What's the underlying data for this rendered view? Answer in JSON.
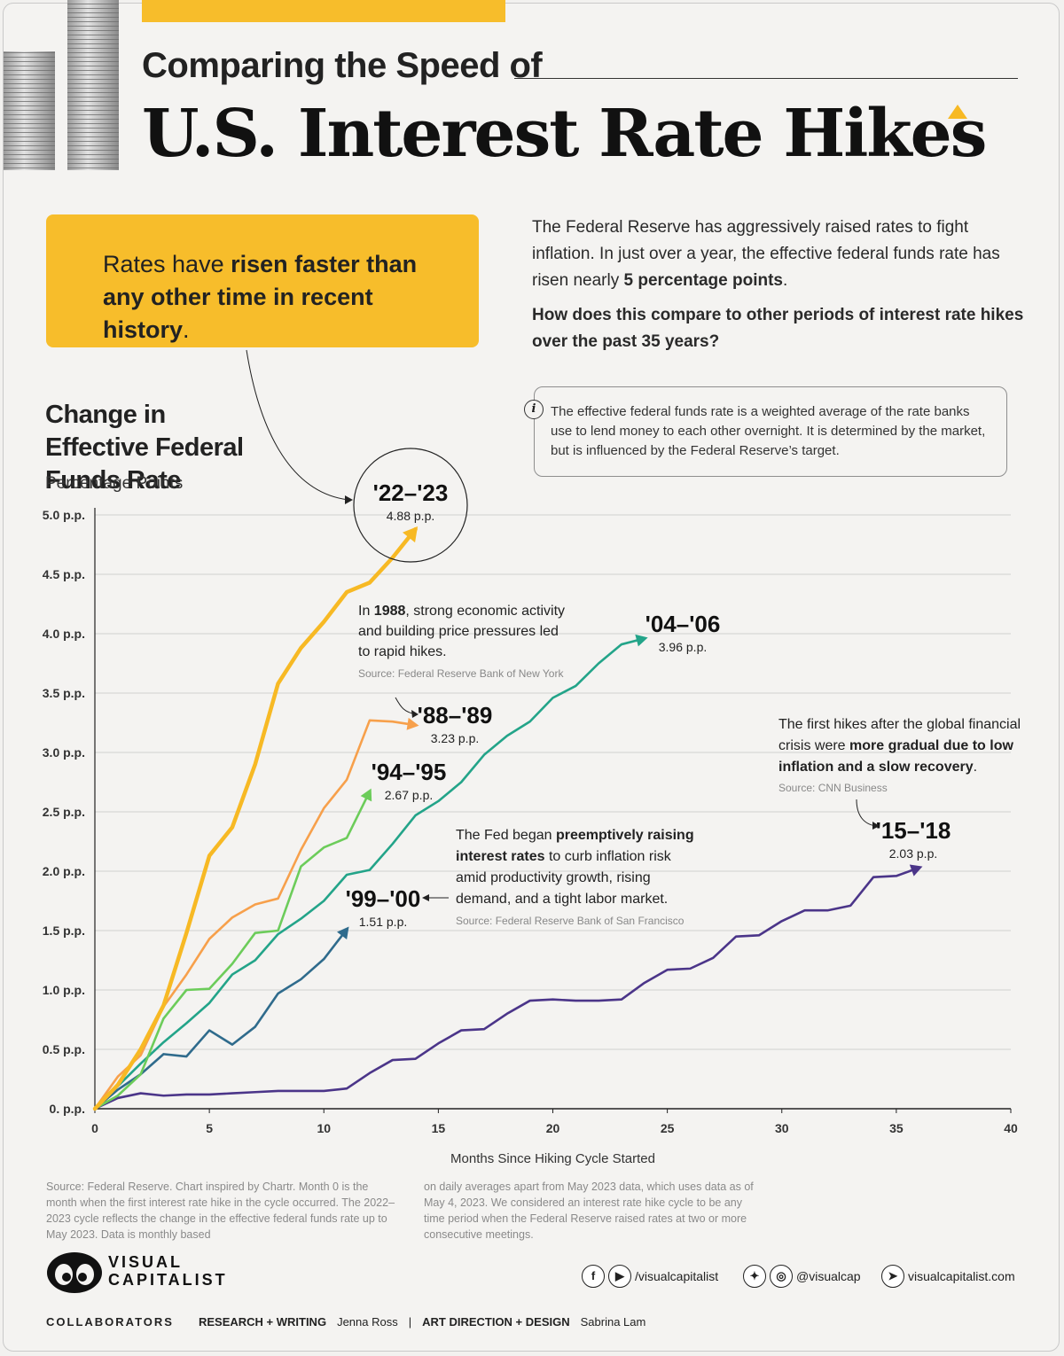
{
  "header": {
    "subtitle": "Comparing the Speed of",
    "title": "U.S. Interest Rate Hikes"
  },
  "callout": {
    "pre": "Rates have ",
    "bold": "risen faster than any other time in recent history",
    "post": "."
  },
  "intro": {
    "p1": "The Federal Reserve has aggressively raised rates to fight inflation. In just over a year, the effective federal funds rate has risen nearly",
    "p1_bold": "5 percentage points",
    "p1_end": ".",
    "p2": "How does this compare to other periods of interest rate hikes over the past 35 years?"
  },
  "info": {
    "icon": "i",
    "text": "The effective federal funds rate is a weighted average of the rate banks use to lend money to each other overnight. It is determined by the market, but is influenced by the Federal Reserve’s target."
  },
  "chart_data": {
    "type": "line",
    "title": "Change in Effective Federal Funds Rate",
    "ylabel": "Percentage Points",
    "xlabel": "Months Since Hiking Cycle Started",
    "xlim": [
      0,
      40
    ],
    "ylim": [
      0,
      5
    ],
    "x_ticks": [
      0,
      5,
      10,
      15,
      20,
      25,
      30,
      35,
      40
    ],
    "y_ticks": [
      {
        "value": 0,
        "label": "0. p.p."
      },
      {
        "value": 0.5,
        "label": "0.5 p.p."
      },
      {
        "value": 1,
        "label": "1.0 p.p."
      },
      {
        "value": 1.5,
        "label": "1.5 p.p."
      },
      {
        "value": 2,
        "label": "2.0 p.p."
      },
      {
        "value": 2.5,
        "label": "2.5 p.p."
      },
      {
        "value": 3,
        "label": "3.0 p.p."
      },
      {
        "value": 3.5,
        "label": "3.5 p.p."
      },
      {
        "value": 4,
        "label": "4.0 p.p."
      },
      {
        "value": 4.5,
        "label": "4.5 p.p."
      },
      {
        "value": 5,
        "label": "5.0 p.p."
      }
    ],
    "grid": "horizontal",
    "series": [
      {
        "name": "'15–'18",
        "final_label": "2.03 p.p.",
        "color": "#4b3589",
        "values": [
          0,
          0.09,
          0.13,
          0.11,
          0.12,
          0.12,
          0.13,
          0.14,
          0.15,
          0.15,
          0.15,
          0.17,
          0.3,
          0.41,
          0.42,
          0.55,
          0.66,
          0.67,
          0.8,
          0.91,
          0.92,
          0.91,
          0.91,
          0.92,
          1.06,
          1.17,
          1.18,
          1.27,
          1.45,
          1.46,
          1.58,
          1.67,
          1.67,
          1.71,
          1.95,
          1.96,
          2.03
        ]
      },
      {
        "name": "'99–'00",
        "final_label": "1.51 p.p.",
        "color": "#2f6b8c",
        "values": [
          0,
          0.16,
          0.29,
          0.46,
          0.44,
          0.66,
          0.54,
          0.69,
          0.97,
          1.09,
          1.26,
          1.51
        ]
      },
      {
        "name": "'04–'06",
        "final_label": "3.96 p.p.",
        "color": "#23a489",
        "values": [
          0,
          0.19,
          0.38,
          0.56,
          0.72,
          0.89,
          1.13,
          1.25,
          1.47,
          1.6,
          1.75,
          1.97,
          2.01,
          2.23,
          2.47,
          2.59,
          2.75,
          2.98,
          3.14,
          3.26,
          3.46,
          3.56,
          3.75,
          3.91,
          3.96
        ]
      },
      {
        "name": "'94–'95",
        "final_label": "2.67 p.p.",
        "color": "#6ccc5a",
        "values": [
          0,
          0.11,
          0.29,
          0.76,
          1.0,
          1.01,
          1.22,
          1.48,
          1.5,
          2.04,
          2.2,
          2.28,
          2.67
        ]
      },
      {
        "name": "'88–'89",
        "final_label": "3.23 p.p.",
        "color": "#f7a04b",
        "values": [
          0,
          0.27,
          0.45,
          0.86,
          1.13,
          1.43,
          1.61,
          1.72,
          1.77,
          2.18,
          2.53,
          2.77,
          3.27,
          3.26,
          3.23
        ]
      },
      {
        "name": "'22–'23",
        "final_label": "4.88 p.p.",
        "color": "#f7b924",
        "values": [
          0,
          0.2,
          0.5,
          0.87,
          1.48,
          2.13,
          2.37,
          2.9,
          3.58,
          3.88,
          4.1,
          4.35,
          4.43,
          4.64,
          4.88
        ]
      }
    ],
    "annotations": {
      "a1988": {
        "pre": "In ",
        "bold": "1988",
        "text": ", strong economic activity and building price pressures led to rapid hikes.",
        "source": "Source: Federal Reserve Bank of New York"
      },
      "a1999": {
        "pre": "The Fed began ",
        "bold": "preemptively raising interest rates",
        "text": " to curb inflation risk amid productivity growth, rising demand, and a tight labor market.",
        "source": "Source: Federal Reserve Bank of San Francisco"
      },
      "a2015": {
        "pre": "The first hikes after the global financial crisis were ",
        "bold": "more gradual due to low inflation and a slow recovery",
        "text": ".",
        "source": "Source: CNN Business"
      }
    }
  },
  "footnotes": {
    "left": "Source: Federal Reserve. Chart inspired by Chartr. Month 0 is the month when the first interest rate hike in the cycle occurred. The 2022–2023 cycle reflects the change in the effective federal funds rate up to May 2023. Data is monthly based",
    "right": "on daily averages apart from May 2023 data, which uses data as of May 4, 2023. We considered an interest rate hike cycle to be any time period when the Federal Reserve raised rates at two or more consecutive meetings."
  },
  "brand": {
    "line1": "VISUAL",
    "line2": "CAPITALIST"
  },
  "social": {
    "fb_yt": "/visualcapitalist",
    "tw_ig": "@visualcap",
    "web": "visualcapitalist.com"
  },
  "collaborators": {
    "label": "COLLABORATORS",
    "role1": "RESEARCH + WRITING",
    "name1": "Jenna Ross",
    "sep": "|",
    "role2": "ART DIRECTION + DESIGN",
    "name2": "Sabrina Lam"
  }
}
